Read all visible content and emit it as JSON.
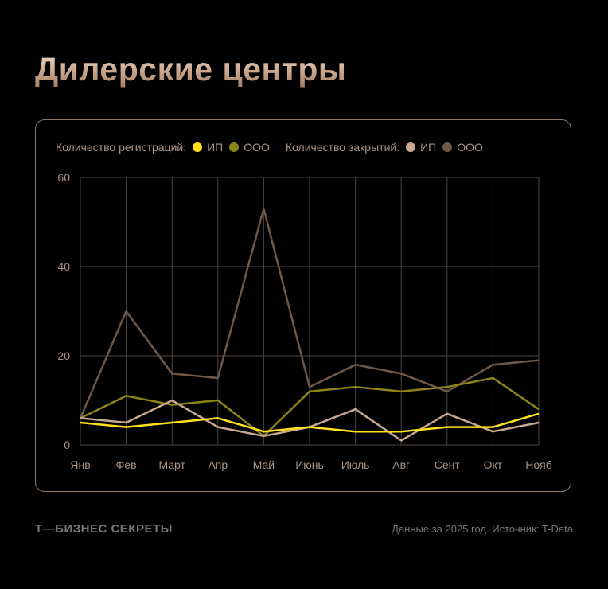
{
  "title": "Дилерские центры",
  "legend": {
    "group1": "Количество регистраций:",
    "group2": "Количество закрытий:"
  },
  "footer": {
    "brand": "Т—БИЗНЕС СЕКРЕТЫ",
    "source": "Данные за 2025 год. Источник: T-Data"
  },
  "chart_data": {
    "type": "line",
    "categories": [
      "Янв",
      "Фев",
      "Март",
      "Апр",
      "Май",
      "Июнь",
      "Июль",
      "Авг",
      "Сент",
      "Окт",
      "Нояб"
    ],
    "ylim": [
      0,
      60
    ],
    "yticks": [
      0,
      20,
      40,
      60
    ],
    "grid": true,
    "legend_placement": "top-left",
    "series": [
      {
        "name": "ИП",
        "group": "Количество регистраций",
        "color": "#ffe01a",
        "values": [
          5,
          4,
          5,
          6,
          3,
          4,
          3,
          3,
          4,
          4,
          7
        ]
      },
      {
        "name": "ООО",
        "group": "Количество регистраций",
        "color": "#8c8417",
        "values": [
          6,
          11,
          9,
          10,
          2,
          12,
          13,
          12,
          13,
          15,
          8
        ]
      },
      {
        "name": "ИП",
        "group": "Количество закрытий",
        "color": "#c9a892",
        "values": [
          6,
          5,
          10,
          4,
          2,
          4,
          8,
          1,
          7,
          3,
          5
        ]
      },
      {
        "name": "ООО",
        "group": "Количество закрытий",
        "color": "#6e5848",
        "values": [
          6,
          30,
          16,
          15,
          53,
          13,
          18,
          16,
          12,
          18,
          19
        ]
      }
    ]
  }
}
